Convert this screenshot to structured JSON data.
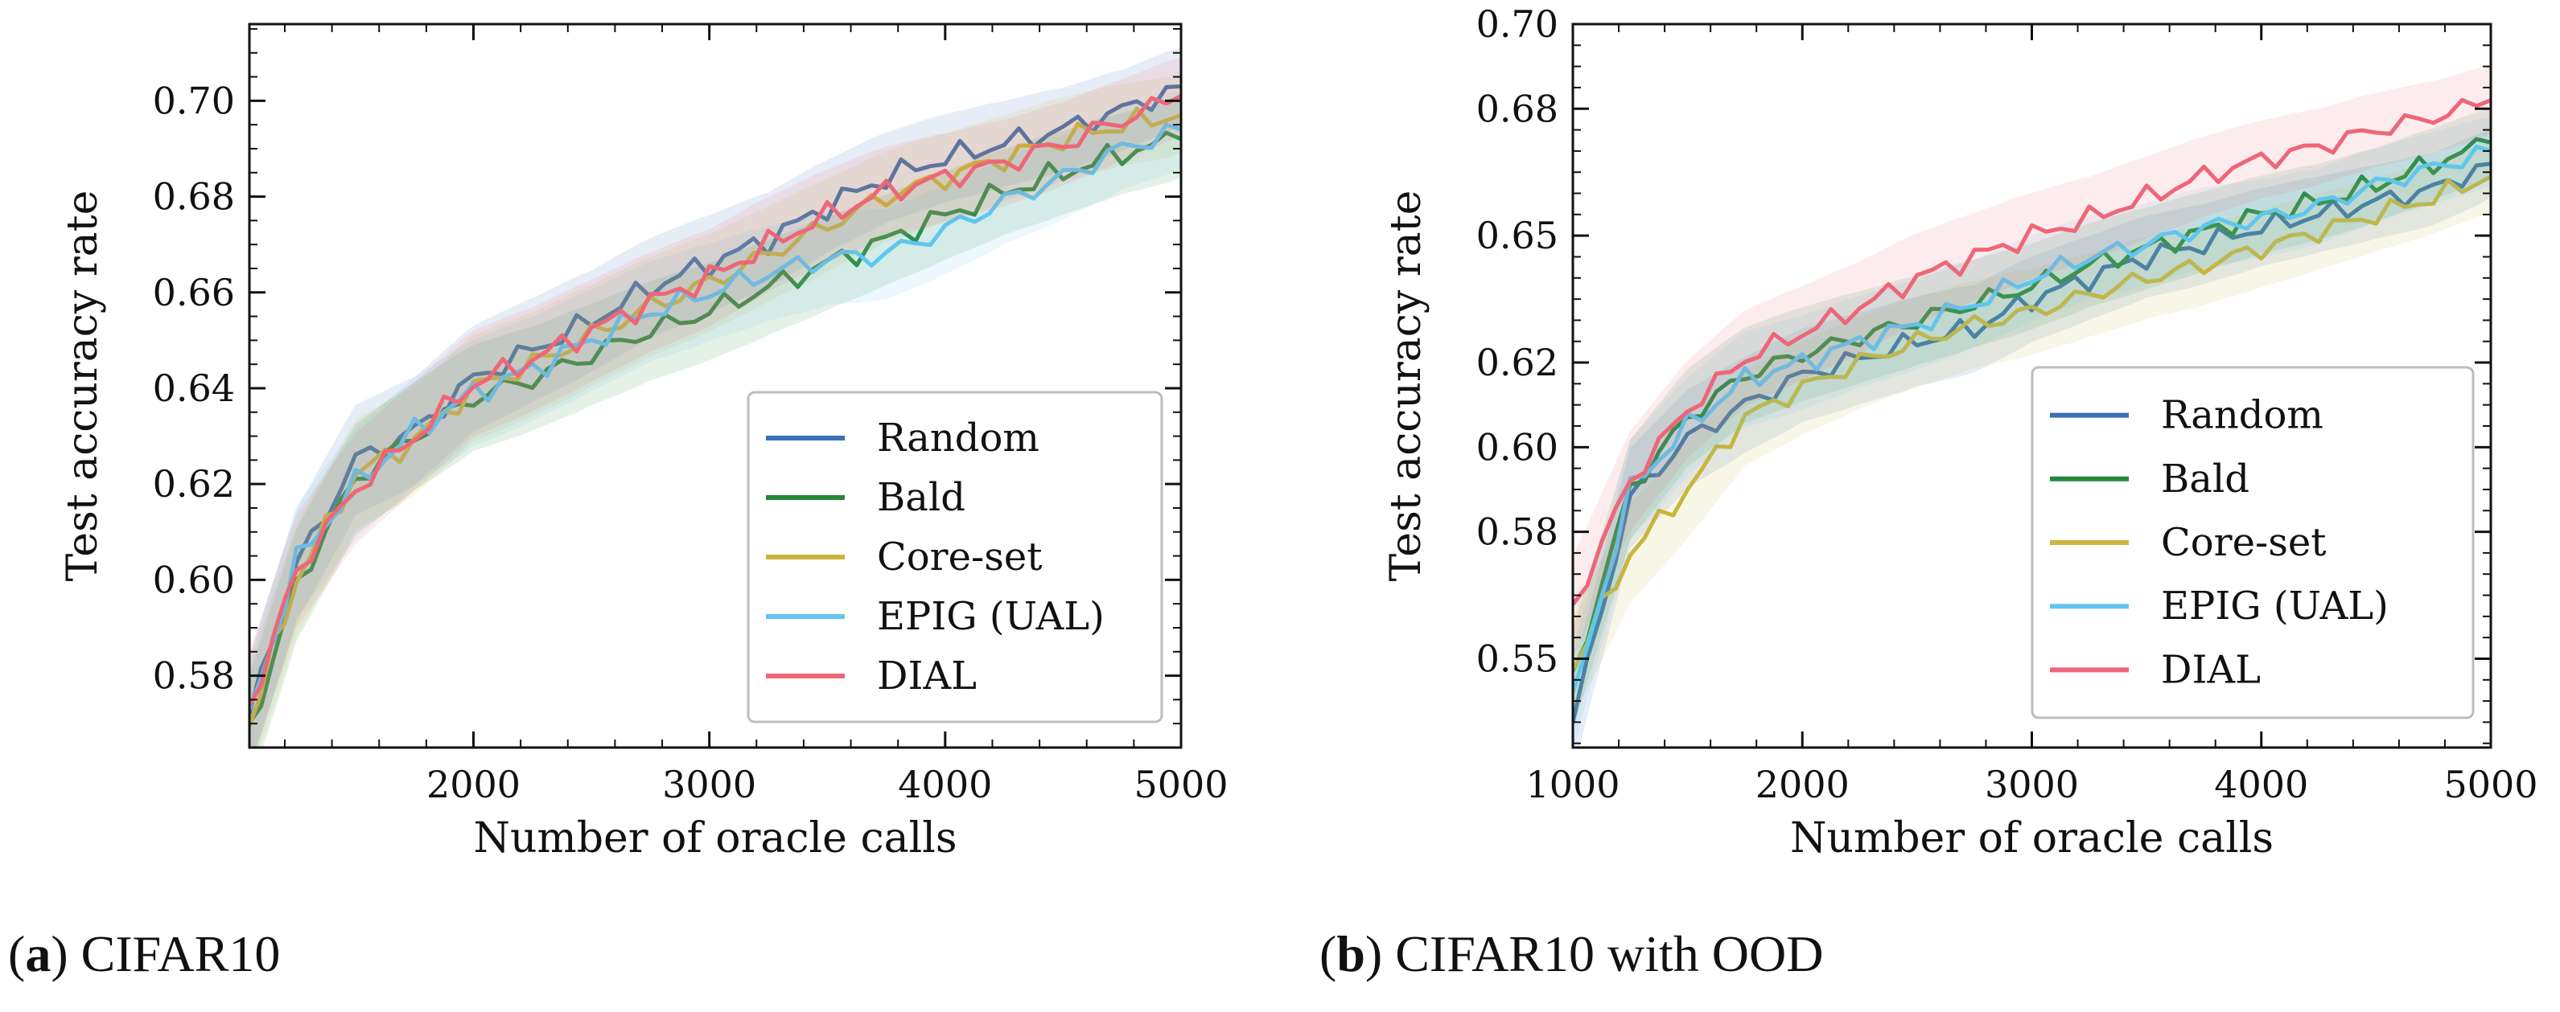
{
  "colors": {
    "Random": "#3b6fb6",
    "Bald": "#23883a",
    "Core-set": "#c9b53c",
    "EPIG (UAL)": "#5fc6ee",
    "DIAL": "#ee6677"
  },
  "captions": {
    "a": {
      "letter": "a",
      "text": "CIFAR10"
    },
    "b": {
      "letter": "b",
      "text": "CIFAR10 with OOD"
    }
  },
  "chart_data": [
    {
      "type": "line",
      "title": "(a) CIFAR10",
      "xlabel": "Number of oracle calls",
      "ylabel": "Test accuracy rate",
      "xlim": [
        1050,
        5000
      ],
      "ylim": [
        0.565,
        0.716
      ],
      "xticks": [
        2000,
        3000,
        4000,
        5000
      ],
      "xtick_labels": [
        "2000",
        "3000",
        "4000",
        "5000"
      ],
      "yticks": [
        0.58,
        0.6,
        0.62,
        0.64,
        0.66,
        0.68,
        0.7
      ],
      "ytick_labels": [
        "0.58",
        "0.60",
        "0.62",
        "0.64",
        "0.66",
        "0.68",
        "0.70"
      ],
      "legend_loc": "lower-right",
      "x": [
        1050,
        1250,
        1500,
        1750,
        2000,
        2250,
        2500,
        2750,
        3000,
        3250,
        3500,
        3750,
        4000,
        4250,
        4500,
        4750,
        5000
      ],
      "series": [
        {
          "name": "Random",
          "values": [
            0.572,
            0.603,
            0.625,
            0.631,
            0.642,
            0.648,
            0.654,
            0.661,
            0.666,
            0.671,
            0.678,
            0.684,
            0.688,
            0.691,
            0.694,
            0.698,
            0.703
          ]
        },
        {
          "name": "Bald",
          "values": [
            0.568,
            0.599,
            0.621,
            0.63,
            0.638,
            0.642,
            0.647,
            0.652,
            0.656,
            0.661,
            0.666,
            0.671,
            0.676,
            0.681,
            0.685,
            0.689,
            0.692
          ]
        },
        {
          "name": "Core-set",
          "values": [
            0.57,
            0.6,
            0.622,
            0.629,
            0.64,
            0.645,
            0.651,
            0.657,
            0.662,
            0.668,
            0.674,
            0.68,
            0.684,
            0.688,
            0.692,
            0.695,
            0.697
          ]
        },
        {
          "name": "EPIG (UAL)",
          "values": [
            0.571,
            0.604,
            0.62,
            0.631,
            0.639,
            0.644,
            0.65,
            0.656,
            0.66,
            0.664,
            0.667,
            0.668,
            0.673,
            0.679,
            0.684,
            0.69,
            0.694
          ]
        },
        {
          "name": "DIAL",
          "values": [
            0.573,
            0.602,
            0.619,
            0.63,
            0.641,
            0.646,
            0.652,
            0.658,
            0.663,
            0.67,
            0.676,
            0.681,
            0.684,
            0.687,
            0.691,
            0.696,
            0.701
          ]
        }
      ]
    },
    {
      "type": "line",
      "title": "(b) CIFAR10 with OOD",
      "xlabel": "Number of oracle calls",
      "ylabel": "Test accuracy rate",
      "xlim": [
        1000,
        5000
      ],
      "ylim": [
        0.529,
        0.7
      ],
      "xticks": [
        1000,
        2000,
        3000,
        4000,
        5000
      ],
      "xtick_labels": [
        "1000",
        "2000",
        "3000",
        "4000",
        "5000"
      ],
      "yticks": [
        0.55,
        0.58,
        0.6,
        0.62,
        0.65,
        0.68,
        0.7
      ],
      "ytick_labels": [
        "0.55",
        "0.58",
        "0.60",
        "0.62",
        "0.65",
        "0.68",
        "0.70"
      ],
      "legend_loc": "lower-right",
      "x": [
        1000,
        1250,
        1500,
        1750,
        2000,
        2250,
        2500,
        2750,
        3000,
        3250,
        3500,
        3750,
        4000,
        4250,
        4500,
        4750,
        5000
      ],
      "series": [
        {
          "name": "Random",
          "values": [
            0.535,
            0.588,
            0.602,
            0.61,
            0.617,
            0.621,
            0.625,
            0.628,
            0.635,
            0.64,
            0.645,
            0.648,
            0.652,
            0.655,
            0.658,
            0.661,
            0.667
          ]
        },
        {
          "name": "Bald",
          "values": [
            0.545,
            0.59,
            0.607,
            0.617,
            0.622,
            0.626,
            0.63,
            0.634,
            0.638,
            0.643,
            0.647,
            0.651,
            0.655,
            0.658,
            0.662,
            0.667,
            0.672
          ]
        },
        {
          "name": "Core-set",
          "values": [
            0.548,
            0.575,
            0.59,
            0.607,
            0.614,
            0.62,
            0.625,
            0.629,
            0.632,
            0.636,
            0.64,
            0.643,
            0.647,
            0.651,
            0.655,
            0.659,
            0.664
          ]
        },
        {
          "name": "EPIG (UAL)",
          "values": [
            0.54,
            0.59,
            0.605,
            0.616,
            0.62,
            0.625,
            0.629,
            0.634,
            0.64,
            0.645,
            0.648,
            0.652,
            0.654,
            0.657,
            0.662,
            0.666,
            0.67
          ]
        },
        {
          "name": "DIAL",
          "values": [
            0.562,
            0.592,
            0.609,
            0.621,
            0.627,
            0.633,
            0.64,
            0.645,
            0.65,
            0.654,
            0.659,
            0.664,
            0.668,
            0.671,
            0.675,
            0.678,
            0.682
          ]
        }
      ]
    }
  ]
}
